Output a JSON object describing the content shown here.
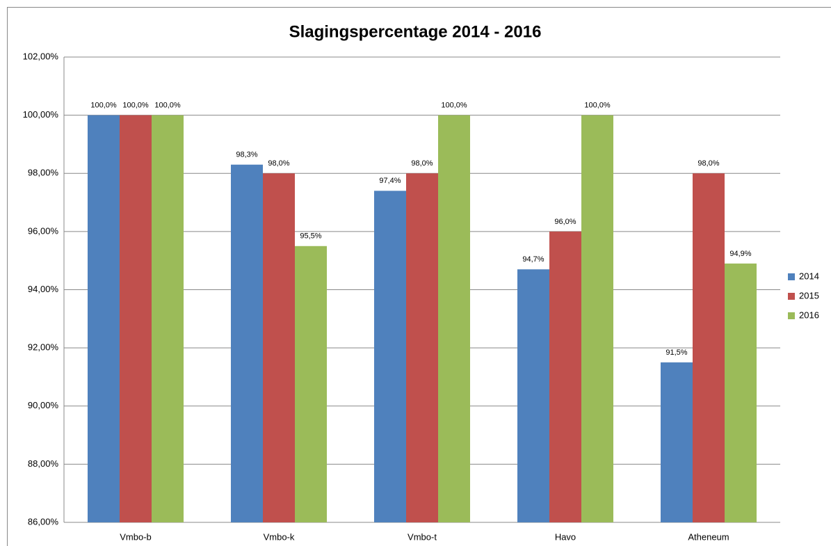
{
  "chart_data": {
    "type": "bar",
    "title": "Slagingspercentage 2014 - 2016",
    "categories": [
      "Vmbo-b",
      "Vmbo-k",
      "Vmbo-t",
      "Havo",
      "Atheneum"
    ],
    "series": [
      {
        "name": "2014",
        "color": "#4f81bd",
        "values": [
          100,
          98.3,
          97.4,
          94.7,
          91.5
        ],
        "value_labels": [
          "100,0%",
          "98,3%",
          "97,4%",
          "94,7%",
          "91,5%"
        ]
      },
      {
        "name": "2015",
        "color": "#c0504d",
        "values": [
          100,
          98,
          98,
          96,
          98
        ],
        "value_labels": [
          "100,0%",
          "98,0%",
          "98,0%",
          "96,0%",
          "98,0%"
        ]
      },
      {
        "name": "2016",
        "color": "#9bbb59",
        "values": [
          100,
          95.5,
          100,
          100,
          94.9
        ],
        "value_labels": [
          "100,0%",
          "95,5%",
          "100,0%",
          "100,0%",
          "94,9%"
        ]
      }
    ],
    "ylim": [
      86,
      102
    ],
    "yticks": [
      {
        "value": 86,
        "label": "86,00%"
      },
      {
        "value": 88,
        "label": "88,00%"
      },
      {
        "value": 90,
        "label": "90,00%"
      },
      {
        "value": 92,
        "label": "92,00%"
      },
      {
        "value": 94,
        "label": "94,00%"
      },
      {
        "value": 96,
        "label": "96,00%"
      },
      {
        "value": 98,
        "label": "98,00%"
      },
      {
        "value": 100,
        "label": "100,00%"
      },
      {
        "value": 102,
        "label": "102,00%"
      }
    ],
    "grid": true,
    "legend": "right"
  }
}
